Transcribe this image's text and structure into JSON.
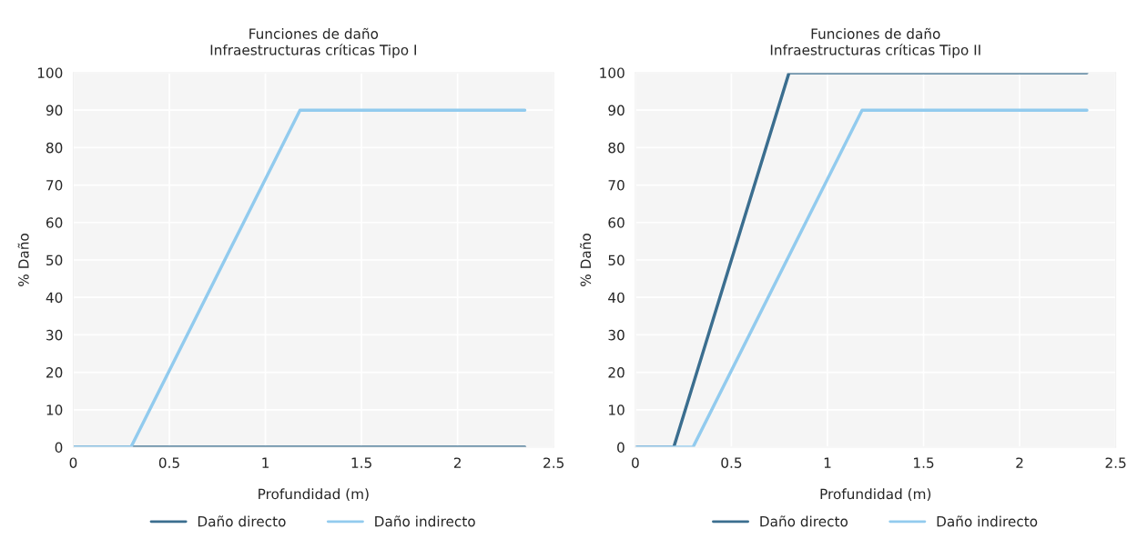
{
  "chart_data": [
    {
      "type": "line",
      "title": "Funciones de daño\nInfraestructuras críticas Tipo I",
      "xlabel": "Profundidad (m)",
      "ylabel": "% Daño",
      "xlim": [
        0,
        2.5
      ],
      "xticks": [
        0,
        0.5,
        1,
        1.5,
        2,
        2.5
      ],
      "ylim": [
        0,
        100
      ],
      "yticks": [
        0,
        10,
        20,
        30,
        40,
        50,
        60,
        70,
        80,
        90,
        100
      ],
      "grid": true,
      "legend": "bottom",
      "marker": "none",
      "line_style": "solid",
      "series": [
        {
          "name": "Daño directo",
          "color": "#3b6e8f",
          "x": [
            0,
            2.35
          ],
          "values": [
            0,
            0
          ]
        },
        {
          "name": "Daño indirecto",
          "color": "#92cbee",
          "x": [
            0,
            0.3,
            1.18,
            2.35
          ],
          "values": [
            0,
            0,
            90,
            90
          ]
        }
      ]
    },
    {
      "type": "line",
      "title": "Funciones de daño\nInfraestructuras críticas Tipo II",
      "xlabel": "Profundidad (m)",
      "ylabel": "% Daño",
      "xlim": [
        0,
        2.5
      ],
      "xticks": [
        0,
        0.5,
        1,
        1.5,
        2,
        2.5
      ],
      "ylim": [
        0,
        100
      ],
      "yticks": [
        0,
        10,
        20,
        30,
        40,
        50,
        60,
        70,
        80,
        90,
        100
      ],
      "grid": true,
      "legend": "bottom",
      "marker": "none",
      "line_style": "solid",
      "series": [
        {
          "name": "Daño directo",
          "color": "#3b6e8f",
          "x": [
            0,
            0.2,
            0.8,
            2.35
          ],
          "values": [
            0,
            0,
            100,
            100
          ]
        },
        {
          "name": "Daño indirecto",
          "color": "#92cbee",
          "x": [
            0,
            0.3,
            1.18,
            2.35
          ],
          "values": [
            0,
            0,
            90,
            90
          ]
        }
      ]
    }
  ]
}
